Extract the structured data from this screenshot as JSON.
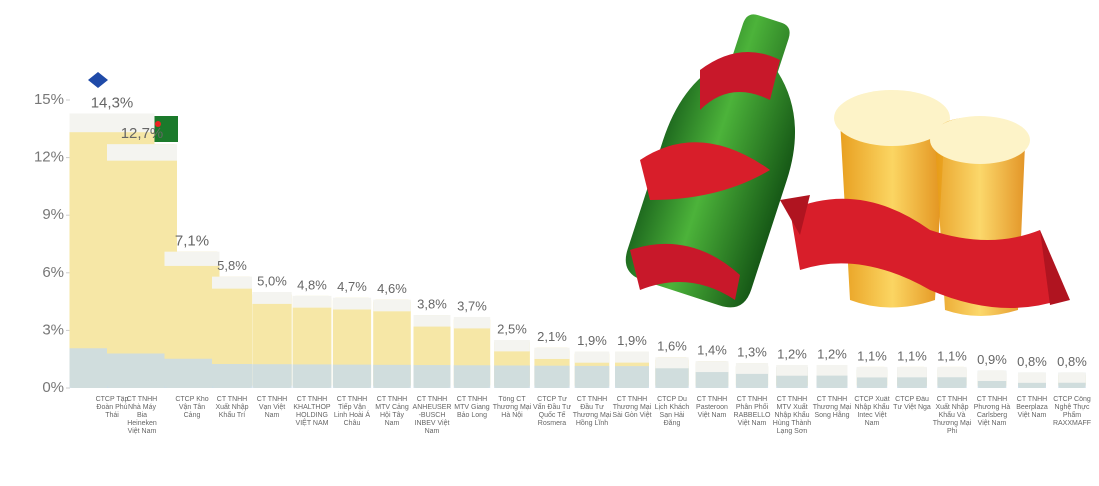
{
  "chart_data": {
    "type": "bar",
    "categories": [
      "CTCP Tập Đoàn Phú Thái",
      "CT TNHH Nhà Máy Bia Heineken Việt Nam",
      "CTCP Kho Vận Tân Cảng",
      "CT TNHH Xuất Nhập Khẩu Trí",
      "CT TNHH Vạn Việt Nam",
      "CT TNHH KHALTHOP HOLDING VIỆT NAM",
      "CT TNHH Tiếp Vận Linh Hoài Á Châu",
      "CT TNHH MTV Cảng Hội Tây Nam",
      "CT TNHH ANHEUSER-BUSCH INBEV Việt Nam",
      "CT TNHH MTV Giang Bảo Long",
      "Tổng CT Thương Mại Hà Nội",
      "CTCP Tư Vấn Đầu Tư Quốc Tế Rosmera",
      "CT TNHH Đầu Tư Thương Mại Hồng Lĩnh",
      "CT TNHH Thương Mại Sài Gòn Việt",
      "CTCP Du Lịch Khách Sạn Hải Đăng",
      "CT TNHH Pasteroon Việt Nam",
      "CT TNHH Phân Phối RABBELLO Việt Nam",
      "CT TNHH MTV Xuất Nhập Khẩu Hùng Thành Lạng Sơn",
      "CT TNHH Thương Mại Song Hằng",
      "CTCP Xuất Nhập Khẩu Intec Việt Nam",
      "CTCP Đầu Tư Việt Nga",
      "CT TNHH Xuất Nhập Khẩu Và Thương Mại Phi",
      "CT TNHH Phương Hà Carlsberg Việt Nam",
      "CT TNHH Beerplaza Việt Nam",
      "CTCP Công Nghệ Thực Phẩm RAXXMAFF"
    ],
    "values": [
      14.3,
      12.7,
      7.1,
      5.8,
      5.0,
      4.8,
      4.7,
      4.6,
      3.8,
      3.7,
      2.5,
      2.1,
      1.9,
      1.9,
      1.6,
      1.4,
      1.3,
      1.2,
      1.2,
      1.1,
      1.1,
      1.1,
      0.9,
      0.8,
      0.8
    ],
    "value_labels": [
      "14,3%",
      "12,7%",
      "7,1%",
      "5,8%",
      "5,0%",
      "4,8%",
      "4,7%",
      "4,6%",
      "3,8%",
      "3,7%",
      "2,5%",
      "2,1%",
      "1,9%",
      "1,9%",
      "1,6%",
      "1,4%",
      "1,3%",
      "1,2%",
      "1,2%",
      "1,1%",
      "1,1%",
      "1,1%",
      "0,9%",
      "0,8%",
      "0,8%"
    ],
    "color": "#f6e7a6",
    "ylim": [
      0,
      15
    ],
    "yticks": [
      {
        "value": 0,
        "label": "0%"
      },
      {
        "value": 3,
        "label": "3%"
      },
      {
        "value": 6,
        "label": "6%"
      },
      {
        "value": 9,
        "label": "9%"
      },
      {
        "value": 12,
        "label": "12%"
      },
      {
        "value": 15,
        "label": "15%"
      }
    ],
    "grid": false
  }
}
